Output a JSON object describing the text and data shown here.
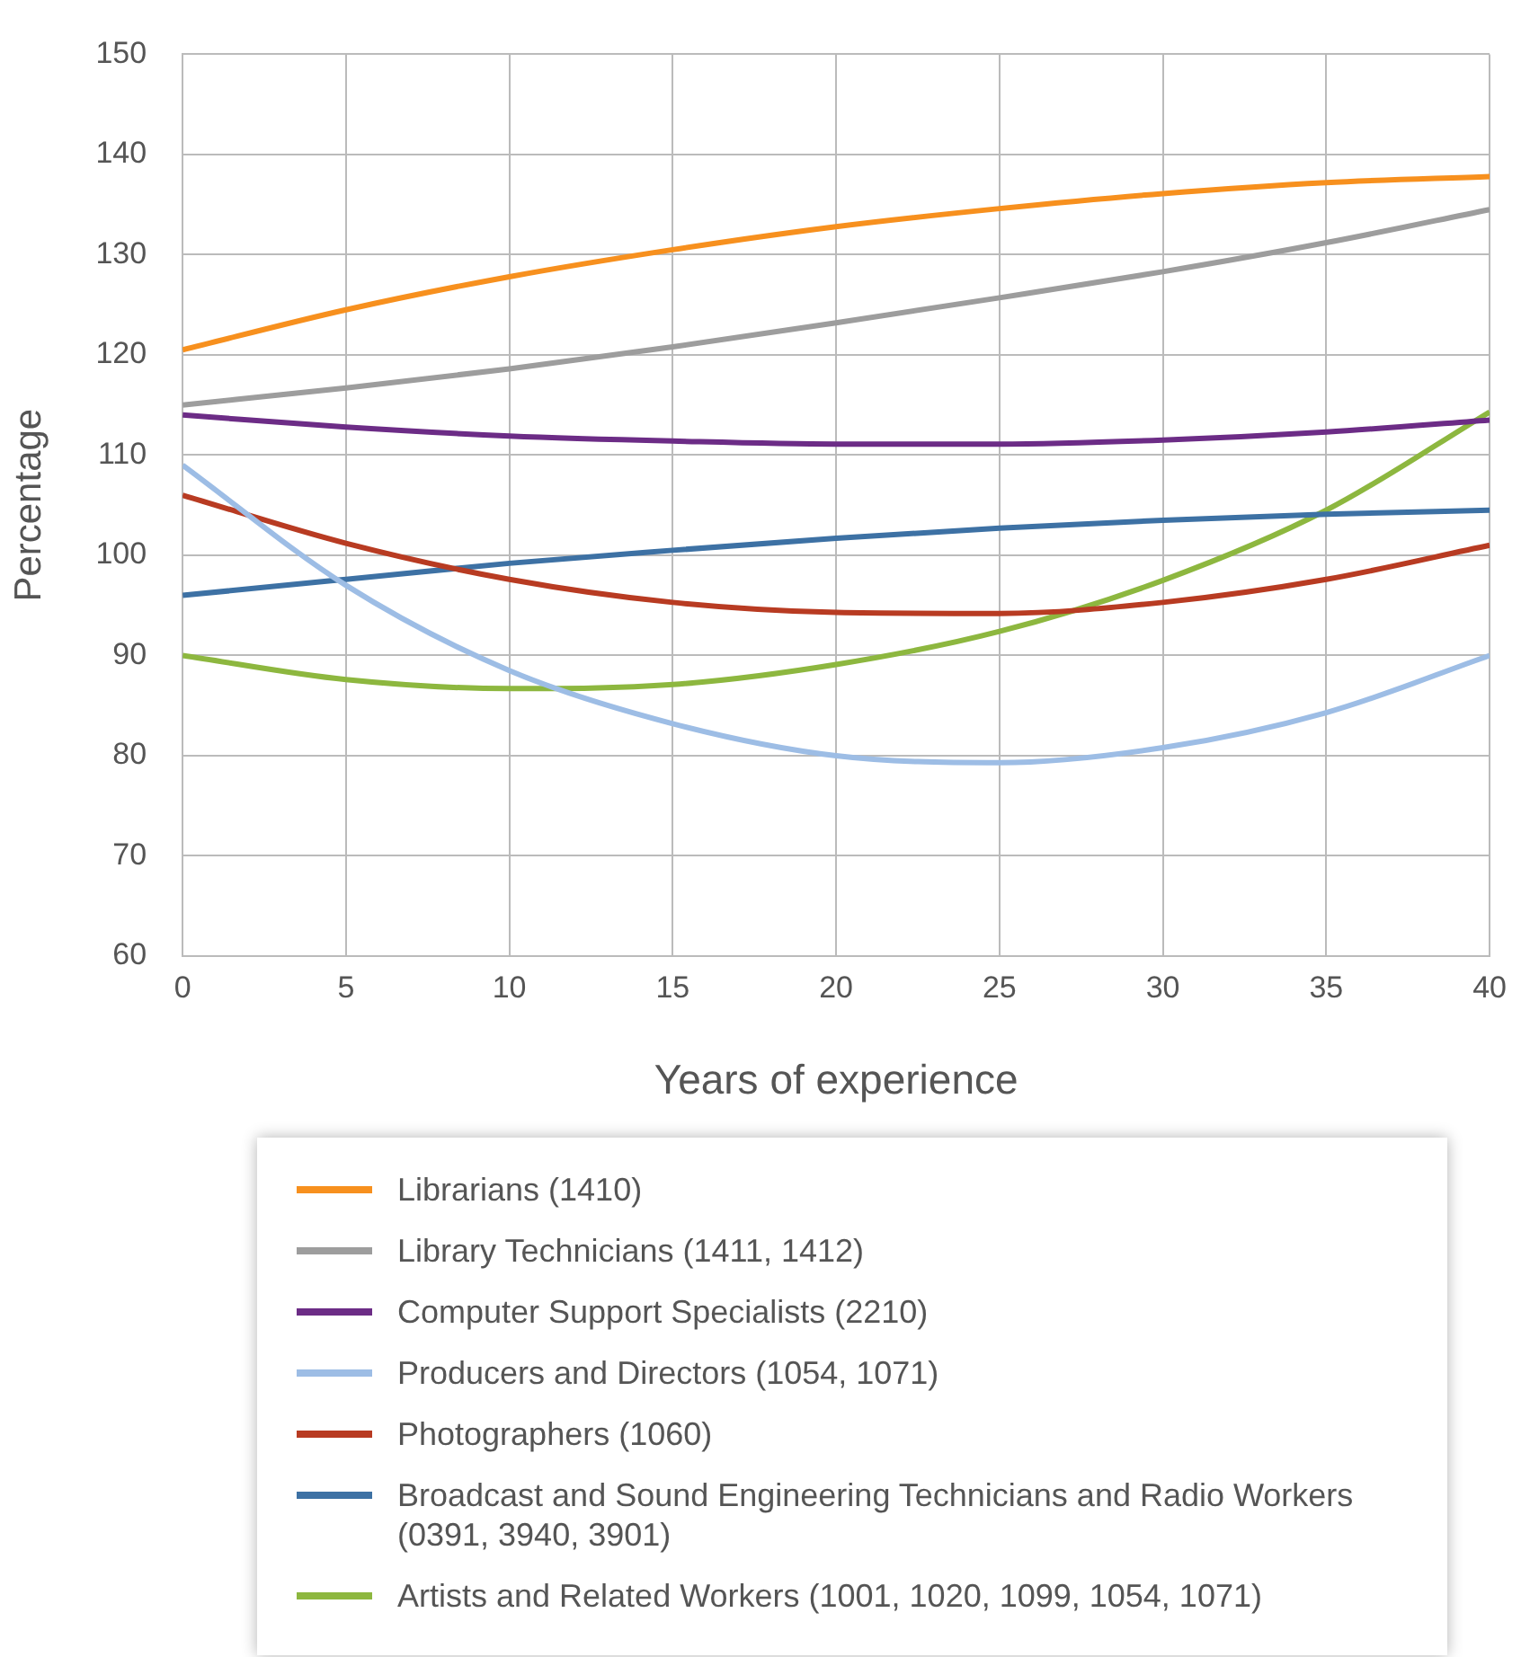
{
  "chart_data": {
    "type": "line",
    "xlabel": "Years of experience",
    "ylabel": "Percentage",
    "x": [
      0,
      5,
      10,
      15,
      20,
      25,
      30,
      35,
      40
    ],
    "xlim": [
      0,
      40
    ],
    "xticks": [
      0,
      5,
      10,
      15,
      20,
      25,
      30,
      35,
      40
    ],
    "ylim": [
      60,
      150
    ],
    "yticks": [
      60,
      70,
      80,
      90,
      100,
      110,
      120,
      130,
      140,
      150
    ],
    "grid": true,
    "legend": "bottom",
    "marker": "none",
    "line_style": "solid",
    "series": [
      {
        "name": "Librarians (1410)",
        "color": "#f7901e",
        "values": [
          120.5,
          124.5,
          127.8,
          130.5,
          132.8,
          134.6,
          136.1,
          137.2,
          137.8
        ]
      },
      {
        "name": "Library Technicians (1411, 1412)",
        "color": "#9d9d9d",
        "values": [
          115,
          116.7,
          118.6,
          120.8,
          123.2,
          125.7,
          128.3,
          131.2,
          134.5
        ]
      },
      {
        "name": "Computer Support Specialists (2210)",
        "color": "#6c2c86",
        "values": [
          114,
          112.8,
          111.9,
          111.4,
          111.1,
          111.1,
          111.5,
          112.3,
          113.5
        ]
      },
      {
        "name": "Producers and Directors (1054, 1071)",
        "color": "#9dbde5",
        "values": [
          109,
          97,
          88.5,
          83.2,
          80,
          79.3,
          80.8,
          84.3,
          90
        ]
      },
      {
        "name": "Photographers (1060)",
        "color": "#b83b22",
        "values": [
          106,
          101.2,
          97.6,
          95.3,
          94.3,
          94.2,
          95.3,
          97.6,
          101
        ]
      },
      {
        "name": "Broadcast and Sound Engineering Technicians and Radio Workers (0391, 3940, 3901)",
        "color": "#3d71a4",
        "values": [
          96,
          97.6,
          99.2,
          100.5,
          101.7,
          102.7,
          103.5,
          104.1,
          104.5
        ]
      },
      {
        "name": "Artists and Related Workers (1001, 1020, 1099, 1054, 1071)",
        "color": "#8db73f",
        "values": [
          90,
          87.6,
          86.7,
          87.1,
          89.1,
          92.4,
          97.5,
          104.5,
          114.3
        ]
      }
    ]
  }
}
